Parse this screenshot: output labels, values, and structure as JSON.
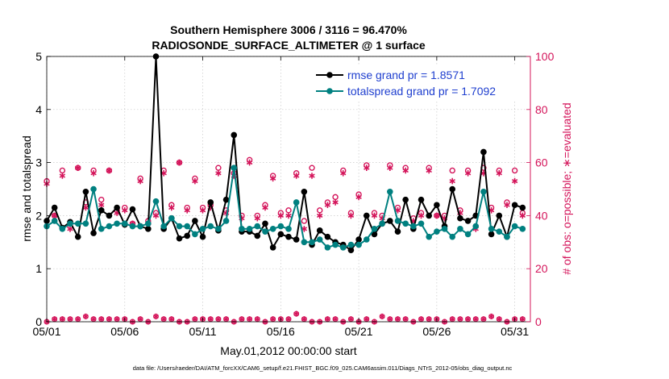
{
  "chart_data": {
    "type": "line",
    "title": "Southern Hemisphere 3006 / 3116 = 96.470%",
    "subtitle": "RADIOSONDE_SURFACE_ALTIMETER @ 1 surface",
    "xlabel": "May.01,2012 00:00:00 start",
    "ylabel_left": "rmse and totalspread",
    "ylabel_right": "# of obs: o=possible; ∗=evaluated",
    "footer": "data file: /Users/raeder/DAI/ATM_forcXX/CAM6_setup/f.e21.FHIST_BGC.f09_025.CAM6assim.011/Diags_NTrS_2012-05/obs_diag_output.nc",
    "xlim": [
      1,
      32
    ],
    "ylim_left": [
      0,
      5
    ],
    "ylim_right": [
      0,
      100
    ],
    "x_ticks": [
      1,
      6,
      11,
      16,
      21,
      26,
      31
    ],
    "x_tick_labels": [
      "05/01",
      "05/06",
      "05/11",
      "05/16",
      "05/21",
      "05/26",
      "05/31"
    ],
    "y_left_ticks": [
      0,
      1,
      2,
      3,
      4,
      5
    ],
    "y_right_ticks": [
      0,
      20,
      40,
      60,
      80,
      100
    ],
    "legend_position": "top-right",
    "colors": {
      "rmse": "#000000",
      "totalspread": "#008080",
      "obs": "#d4145a"
    },
    "x": [
      1.0,
      1.5,
      2.0,
      2.5,
      3.0,
      3.5,
      4.0,
      4.5,
      5.0,
      5.5,
      6.0,
      6.5,
      7.0,
      7.5,
      8.0,
      8.5,
      9.0,
      9.5,
      10.0,
      10.5,
      11.0,
      11.5,
      12.0,
      12.5,
      13.0,
      13.5,
      14.0,
      14.5,
      15.0,
      15.5,
      16.0,
      16.5,
      17.0,
      17.5,
      18.0,
      18.5,
      19.0,
      19.5,
      20.0,
      20.5,
      21.0,
      21.5,
      22.0,
      22.5,
      23.0,
      23.5,
      24.0,
      24.5,
      25.0,
      25.5,
      26.0,
      26.5,
      27.0,
      27.5,
      28.0,
      28.5,
      29.0,
      29.5,
      30.0,
      30.5,
      31.0,
      31.5
    ],
    "series": [
      {
        "name": "rmse",
        "legend": "rmse grand pr = 1.8571",
        "axis": "left",
        "values": [
          1.9,
          2.15,
          1.77,
          1.88,
          1.6,
          2.45,
          1.67,
          2.1,
          2.0,
          2.15,
          1.83,
          2.12,
          1.8,
          1.75,
          5.0,
          1.75,
          1.95,
          1.57,
          1.62,
          1.9,
          1.6,
          2.25,
          1.72,
          2.3,
          3.52,
          1.7,
          1.7,
          1.62,
          1.85,
          1.4,
          1.65,
          1.6,
          1.55,
          2.45,
          1.45,
          1.72,
          1.6,
          1.5,
          1.45,
          1.35,
          1.55,
          2.0,
          1.65,
          1.85,
          1.9,
          1.7,
          2.3,
          1.75,
          2.3,
          2.0,
          2.2,
          1.8,
          2.5,
          1.95,
          1.9,
          2.0,
          3.2,
          1.65,
          2.0,
          1.6,
          2.2,
          2.15
        ]
      },
      {
        "name": "totalspread",
        "legend": "totalspread grand pr = 1.7092",
        "axis": "left",
        "values": [
          1.8,
          1.9,
          1.75,
          1.85,
          1.85,
          1.85,
          2.5,
          1.75,
          1.8,
          1.85,
          1.85,
          1.8,
          1.8,
          1.85,
          2.27,
          1.8,
          1.95,
          1.8,
          1.8,
          1.65,
          1.75,
          1.8,
          1.75,
          1.9,
          2.9,
          1.75,
          1.75,
          1.8,
          1.7,
          1.75,
          1.8,
          1.75,
          2.25,
          1.5,
          1.5,
          1.55,
          1.4,
          1.45,
          1.4,
          1.45,
          1.45,
          1.55,
          1.75,
          1.85,
          2.45,
          1.9,
          1.85,
          1.8,
          1.85,
          1.6,
          1.7,
          1.75,
          1.6,
          1.75,
          1.65,
          1.8,
          2.45,
          1.75,
          1.7,
          1.6,
          1.8,
          1.75
        ]
      },
      {
        "name": "obs possible",
        "axis": "right",
        "values": [
          53,
          40,
          57,
          36,
          58,
          45,
          57,
          46,
          57,
          42,
          43,
          37,
          54,
          38,
          41,
          57,
          44,
          60,
          43,
          54,
          43,
          44,
          58,
          42,
          56,
          40,
          61,
          40,
          44,
          55,
          41,
          42,
          56,
          38,
          58,
          42,
          45,
          47,
          57,
          41,
          48,
          59,
          41,
          40,
          59,
          43,
          58,
          39,
          41,
          58,
          40,
          40,
          57,
          42,
          57,
          36,
          58,
          43,
          57,
          45,
          57,
          41
        ]
      },
      {
        "name": "obs evaluated",
        "axis": "right",
        "values": [
          52,
          40,
          55,
          35,
          58,
          43,
          56,
          44,
          57,
          41,
          42,
          37,
          53,
          37,
          40,
          56,
          43,
          60,
          42,
          53,
          42,
          43,
          56,
          41,
          55,
          39,
          60,
          39,
          43,
          54,
          40,
          40,
          55,
          35,
          55,
          40,
          44,
          45,
          56,
          40,
          47,
          58,
          40,
          39,
          58,
          42,
          57,
          38,
          40,
          57,
          40,
          39,
          53,
          41,
          56,
          35,
          56,
          42,
          56,
          44,
          53,
          40
        ]
      },
      {
        "name": "obs zero",
        "axis": "right",
        "values": [
          0,
          1,
          1,
          1,
          1,
          2,
          1,
          1,
          1,
          1,
          1,
          0,
          1,
          0,
          2,
          1,
          1,
          0,
          0,
          1,
          1,
          1,
          1,
          1,
          0,
          1,
          1,
          1,
          0,
          1,
          1,
          1,
          3,
          1,
          0,
          0,
          1,
          1,
          0,
          1,
          0,
          1,
          0,
          2,
          1,
          1,
          1,
          0,
          1,
          1,
          1,
          0,
          1,
          1,
          1,
          1,
          1,
          2,
          1,
          0,
          1,
          1
        ]
      }
    ]
  }
}
